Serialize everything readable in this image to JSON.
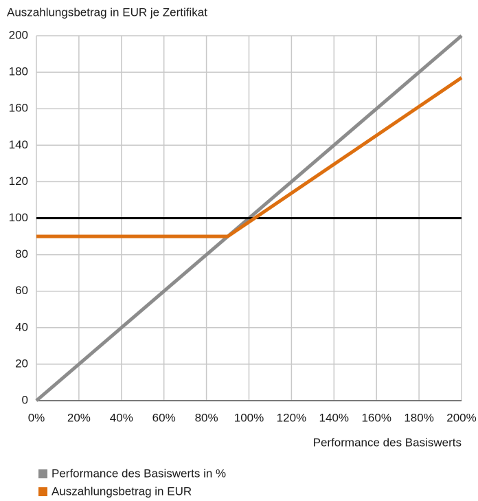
{
  "chart_data": {
    "type": "line",
    "title": "Auszahlungsbetrag in EUR je Zertifikat",
    "x_label": "Performance des Basiswerts",
    "series": [
      {
        "name": "Performance des Basiswerts in %",
        "color": "#8c8c8c",
        "x": [
          0,
          200
        ],
        "values": [
          0,
          200
        ]
      },
      {
        "name": "Auszahlungsbetrag in EUR",
        "color": "#dd6f10",
        "x": [
          0,
          90,
          200
        ],
        "values": [
          90,
          90,
          177
        ]
      }
    ],
    "reference_lines": [
      {
        "y": 100,
        "color": "#000000"
      }
    ],
    "xlim": [
      0,
      200
    ],
    "xticks": [
      {
        "value": 0,
        "label": "0%"
      },
      {
        "value": 20,
        "label": "20%"
      },
      {
        "value": 40,
        "label": "40%"
      },
      {
        "value": 60,
        "label": "60%"
      },
      {
        "value": 80,
        "label": "80%"
      },
      {
        "value": 100,
        "label": "100%"
      },
      {
        "value": 120,
        "label": "120%"
      },
      {
        "value": 140,
        "label": "140%"
      },
      {
        "value": 160,
        "label": "160%"
      },
      {
        "value": 180,
        "label": "180%"
      },
      {
        "value": 200,
        "label": "200%"
      }
    ],
    "ylim": [
      0,
      200
    ],
    "yticks": [
      0,
      20,
      40,
      60,
      80,
      100,
      120,
      140,
      160,
      180,
      200
    ],
    "grid": true
  }
}
